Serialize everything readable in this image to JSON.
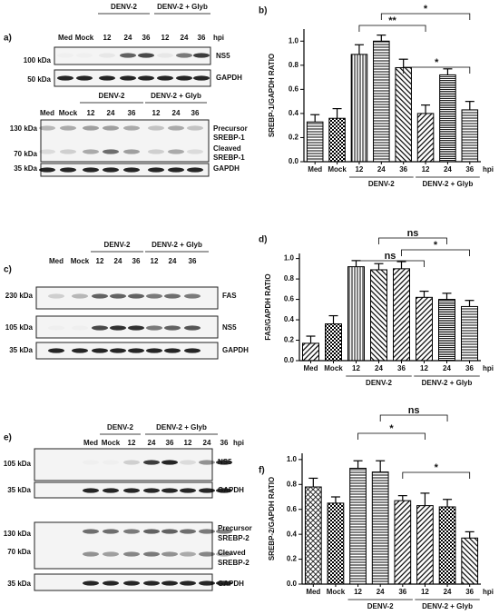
{
  "chart_data": [
    {
      "type": "bar",
      "panel": "b)",
      "y_label": "SREBP-1/GAPDH RATIO",
      "categories": [
        "Med",
        "Mock",
        "12",
        "24",
        "36",
        "12",
        "24",
        "36"
      ],
      "x_unit": "hpi",
      "group_labels": [
        "DENV-2",
        "DENV-2 + Glyb"
      ],
      "values": [
        0.33,
        0.36,
        0.89,
        1.0,
        0.78,
        0.4,
        0.72,
        0.43
      ],
      "errors": [
        0.06,
        0.08,
        0.08,
        0.05,
        0.07,
        0.07,
        0.05,
        0.07
      ],
      "color": "#000000",
      "ylim": [
        0,
        1.1
      ],
      "yticks": [
        {
          "value": 0,
          "label": "0.0"
        },
        {
          "value": 0.2,
          "label": "0.2"
        },
        {
          "value": 0.4,
          "label": "0.4"
        },
        {
          "value": 0.6,
          "label": "0.6"
        },
        {
          "value": 0.8,
          "label": "0.8"
        },
        {
          "value": 1.0,
          "label": "1.0"
        }
      ],
      "annotations": [
        "*",
        "**",
        "*"
      ]
    },
    {
      "type": "bar",
      "panel": "d)",
      "y_label": "FAS/GAPDH RATIO",
      "categories": [
        "Med",
        "Mock",
        "12",
        "24",
        "36",
        "12",
        "24",
        "36"
      ],
      "x_unit": "hpi",
      "group_labels": [
        "DENV-2",
        "DENV-2 + Glyb"
      ],
      "values": [
        0.17,
        0.36,
        0.92,
        0.89,
        0.9,
        0.62,
        0.6,
        0.53
      ],
      "errors": [
        0.07,
        0.08,
        0.06,
        0.06,
        0.07,
        0.06,
        0.06,
        0.06
      ],
      "color": "#000000",
      "ylim": [
        0,
        1.05
      ],
      "yticks": [
        {
          "value": 0,
          "label": "0.0"
        },
        {
          "value": 0.2,
          "label": "0.2"
        },
        {
          "value": 0.4,
          "label": "0.4"
        },
        {
          "value": 0.6,
          "label": "0.6"
        },
        {
          "value": 0.8,
          "label": "0.8"
        },
        {
          "value": 1.0,
          "label": "1.0"
        }
      ],
      "annotations": [
        "ns",
        "ns",
        "*"
      ]
    },
    {
      "type": "bar",
      "panel": "f)",
      "y_label": "SREBP-2/GAPDH RATIO",
      "categories": [
        "Med",
        "Mock",
        "12",
        "24",
        "36",
        "12",
        "24",
        "36"
      ],
      "x_unit": "hpi",
      "group_labels": [
        "DENV-2",
        "DENV-2 + Glyb"
      ],
      "values": [
        0.78,
        0.65,
        0.93,
        0.9,
        0.67,
        0.63,
        0.62,
        0.37
      ],
      "errors": [
        0.07,
        0.05,
        0.06,
        0.09,
        0.04,
        0.1,
        0.06,
        0.05
      ],
      "color": "#000000",
      "ylim": [
        0,
        1.05
      ],
      "yticks": [
        {
          "value": 0,
          "label": "0.0"
        },
        {
          "value": 0.2,
          "label": "0.2"
        },
        {
          "value": 0.4,
          "label": "0.4"
        },
        {
          "value": 0.6,
          "label": "0.6"
        },
        {
          "value": 0.8,
          "label": "0.8"
        },
        {
          "value": 1.0,
          "label": "1.0"
        }
      ],
      "annotations": [
        "*",
        "ns",
        "*"
      ]
    }
  ],
  "blots": [
    {
      "panel": "a)",
      "blocks": [
        {
          "groups": [
            "DENV-2",
            "DENV-2 + Glyb"
          ],
          "lanes": [
            "Med",
            "Mock",
            "12",
            "24",
            "36",
            "12",
            "24",
            "36"
          ],
          "unit": "hpi",
          "markers": [
            "100 kDa",
            "50 kDa"
          ],
          "names": [
            [
              "NS5"
            ],
            [
              "GAPDH"
            ]
          ]
        },
        {
          "groups": [
            "DENV-2",
            "DENV-2 + Glyb"
          ],
          "lanes": [
            "Med",
            "Mock",
            "12",
            "24",
            "36",
            "12",
            "24",
            "36"
          ],
          "markers": [
            "130 kDa",
            "70 kDa",
            "35 kDa"
          ],
          "names": [
            [
              "Precursor",
              "SREBP-1"
            ],
            [
              "Cleaved",
              "SREBP-1"
            ],
            [
              "GAPDH"
            ]
          ]
        }
      ]
    },
    {
      "panel": "c)",
      "blocks": [
        {
          "groups": [
            "DENV-2",
            "DENV-2 + Glyb"
          ],
          "lanes": [
            "Med",
            "Mock",
            "12",
            "24",
            "36",
            "12",
            "24",
            "36"
          ],
          "markers": [
            "230 kDa",
            "105 kDa",
            "35 kDa"
          ],
          "names": [
            [
              "FAS"
            ],
            [
              "NS5"
            ],
            [
              "GAPDH"
            ]
          ]
        }
      ]
    },
    {
      "panel": "e)",
      "blocks": [
        {
          "groups": [
            "DENV-2",
            "DENV-2 + Glyb"
          ],
          "lanes": [
            "Med",
            "Mock",
            "12",
            "24",
            "36",
            "12",
            "24",
            "36"
          ],
          "unit": "hpi",
          "markers": [
            "105 kDa",
            "35 kDa"
          ],
          "names": [
            [
              "NS5"
            ],
            [
              "GAPDH"
            ]
          ]
        },
        {
          "markers": [
            "130 kDa",
            "70 kDa",
            "35 kDa"
          ],
          "names": [
            [
              "Precursor",
              "SREBP-2"
            ],
            [
              "Cleaved",
              "SREBP-2"
            ],
            [
              "GAPDH"
            ]
          ]
        }
      ]
    }
  ]
}
